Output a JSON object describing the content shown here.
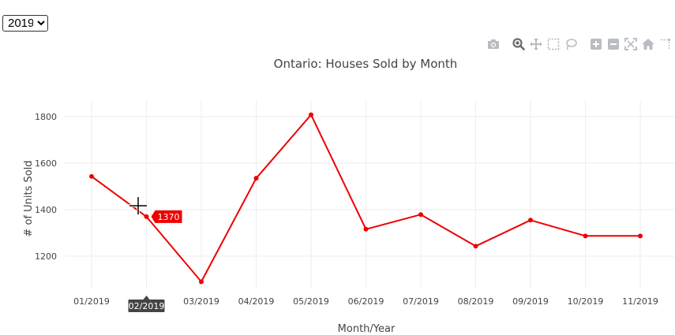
{
  "year_selector": {
    "selected": "2019",
    "options": [
      "2019"
    ]
  },
  "modebar": {
    "icons": [
      "camera-icon",
      "zoom-icon",
      "pan-icon",
      "box-select-icon",
      "lasso-icon",
      "zoom-in-icon",
      "zoom-out-icon",
      "autoscale-icon",
      "reset-axes-icon",
      "spike-lines-icon"
    ]
  },
  "chart_data": {
    "type": "line",
    "title": "Ontario: Houses Sold by Month",
    "xlabel": "Month/Year",
    "ylabel": "# of Units Sold",
    "categories": [
      "01/2019",
      "02/2019",
      "03/2019",
      "04/2019",
      "05/2019",
      "06/2019",
      "07/2019",
      "08/2019",
      "09/2019",
      "10/2019",
      "11/2019"
    ],
    "series": [
      {
        "values": [
          1543,
          1370,
          1090,
          1535,
          1808,
          1316,
          1379,
          1243,
          1355,
          1287,
          1287
        ]
      }
    ],
    "yticks": [
      1200,
      1400,
      1600,
      1800
    ],
    "ylim": [
      1055,
      1860
    ],
    "grid": true,
    "line_color": "#ee0000",
    "hover": {
      "category_label": "02/2019",
      "value_label": "1370"
    }
  }
}
